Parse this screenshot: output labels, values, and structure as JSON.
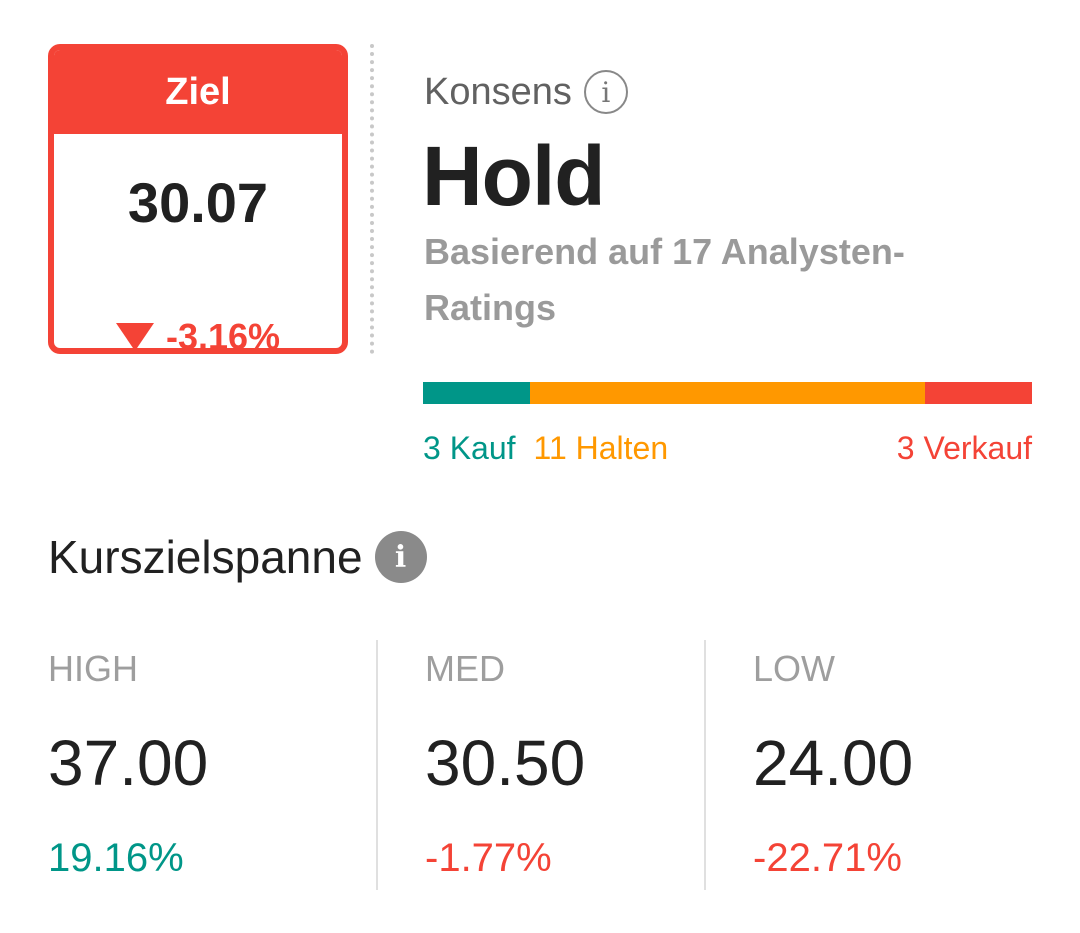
{
  "ziel": {
    "label": "Ziel",
    "value": "30.07",
    "change": "-3.16%",
    "change_direction": "down",
    "color": "#f44336"
  },
  "konsens": {
    "label": "Konsens",
    "info_icon": "info-outline-icon",
    "rating": "Hold",
    "basis_text": "Basierend auf 17 Analysten-Ratings"
  },
  "rating_distribution": {
    "segments": [
      {
        "name": "Kauf",
        "count": 3,
        "color": "#009688"
      },
      {
        "name": "Halten",
        "count": 11,
        "color": "#ff9800"
      },
      {
        "name": "Verkauf",
        "count": 3,
        "color": "#f44336"
      }
    ],
    "labels": {
      "kauf": "3 Kauf",
      "halten": "11 Halten",
      "verkauf": "3 Verkauf"
    }
  },
  "kursziel": {
    "title": "Kurszielspanne",
    "info_icon": "info-filled-icon",
    "columns": {
      "high": {
        "label": "HIGH",
        "value": "37.00",
        "pct": "19.16%",
        "color": "#009688"
      },
      "med": {
        "label": "MED",
        "value": "30.50",
        "pct": "-1.77%",
        "color": "#f44336"
      },
      "low": {
        "label": "LOW",
        "value": "24.00",
        "pct": "-22.71%",
        "color": "#f44336"
      }
    }
  }
}
